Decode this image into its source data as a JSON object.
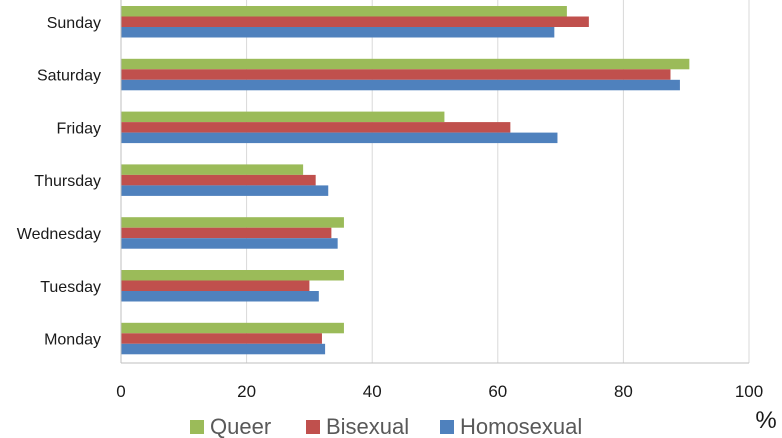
{
  "chart_data": {
    "type": "bar",
    "orientation": "horizontal",
    "categories": [
      "Sunday",
      "Saturday",
      "Friday",
      "Thursday",
      "Wednesday",
      "Tuesday",
      "Monday"
    ],
    "series": [
      {
        "name": "Queer",
        "color": "#9BBB59",
        "values": [
          71,
          90.5,
          51.5,
          29,
          35.5,
          35.5,
          35.5
        ]
      },
      {
        "name": "Bisexual",
        "color": "#C0504D",
        "values": [
          74.5,
          87.5,
          62,
          31,
          33.5,
          30,
          32
        ]
      },
      {
        "name": "Homosexual",
        "color": "#4F81BD",
        "values": [
          69,
          89,
          69.5,
          33,
          34.5,
          31.5,
          32.5
        ]
      }
    ],
    "xlim": [
      0,
      100
    ],
    "xticks": [
      0,
      20,
      40,
      60,
      80,
      100
    ],
    "xlabel": "%",
    "title": "",
    "grid": true,
    "legend_position": "bottom"
  }
}
